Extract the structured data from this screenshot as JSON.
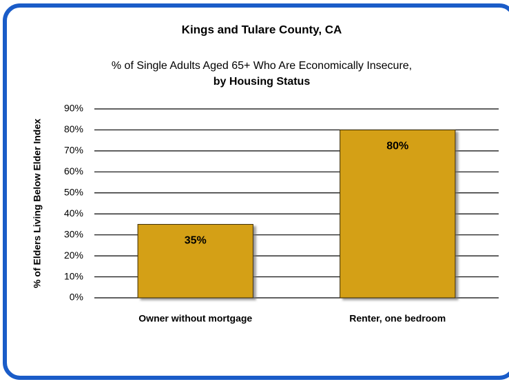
{
  "chart_data": {
    "type": "bar",
    "title": "Kings and Tulare County, CA",
    "subtitle": [
      "% of Single Adults Aged 65+ Who Are Economically Insecure,",
      "by Housing Status"
    ],
    "y_label": "% of  Elders Living Below  Elder Index",
    "categories": [
      "Owner without mortgage",
      "Renter, one bedroom"
    ],
    "values": [
      35,
      80
    ],
    "value_labels": [
      "35%",
      "80%"
    ],
    "color": "#d4a017",
    "ylim": [
      0,
      90
    ],
    "yticks": [
      {
        "value": 0,
        "label": "0%"
      },
      {
        "value": 10,
        "label": "10%"
      },
      {
        "value": 20,
        "label": "20%"
      },
      {
        "value": 30,
        "label": "30%"
      },
      {
        "value": 40,
        "label": "40%"
      },
      {
        "value": 50,
        "label": "50%"
      },
      {
        "value": 60,
        "label": "60%"
      },
      {
        "value": 70,
        "label": "70%"
      },
      {
        "value": 80,
        "label": "80%"
      },
      {
        "value": 90,
        "label": "90%"
      }
    ],
    "grid": true
  }
}
